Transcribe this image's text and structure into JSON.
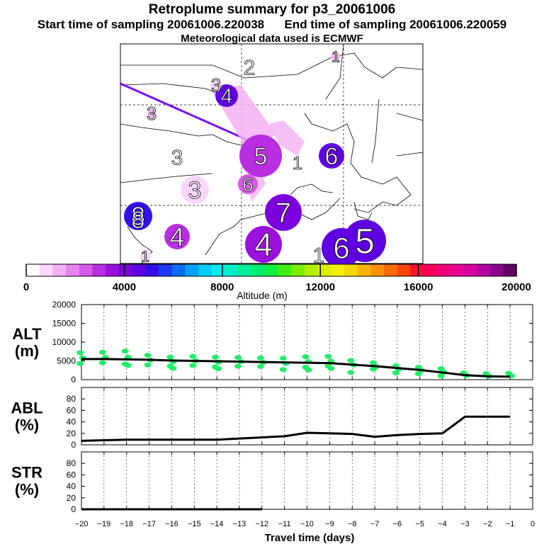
{
  "header": {
    "title": "Retroplume summary for p3_20061006",
    "sampling_line": "Start time of sampling 20061006.220038      End time of sampling 20061006.220059",
    "met_line": "Meteorological data used is ECMWF"
  },
  "colors": {
    "scale": [
      "#ffffff",
      "#fbd6fb",
      "#f3b0f3",
      "#e884ee",
      "#d55ae8",
      "#b92ee0",
      "#9a10dd",
      "#7c00dd",
      "#5e00e0",
      "#3410e8",
      "#1d3cf0",
      "#0c6cf4",
      "#00a0f6",
      "#00cdf6",
      "#00ecec",
      "#00eec6",
      "#00ee9c",
      "#00ee70",
      "#10ee40",
      "#40ee10",
      "#7cee00",
      "#b0ee00",
      "#dcee00",
      "#f4f000",
      "#f4d800",
      "#f8b400",
      "#f89000",
      "#f86c00",
      "#f84400",
      "#f81030",
      "#f8005c",
      "#f0007a",
      "#e80090",
      "#d400a0",
      "#b400a0",
      "#8c0090",
      "#640060"
    ],
    "alt_points": "#22ee66",
    "plume_line": "#7a10ee"
  },
  "map": {
    "cluster_labels": [
      {
        "label": "1",
        "alt_m": 900
      },
      {
        "label": "2",
        "alt_m": 1500
      },
      {
        "label": "3",
        "alt_m": 1200
      },
      {
        "label": "4",
        "alt_m": 4200
      },
      {
        "label": "5",
        "alt_m": 2500
      },
      {
        "label": "6",
        "alt_m": 4500
      },
      {
        "label": "7",
        "alt_m": 3800
      },
      {
        "label": "8",
        "alt_m": 4800
      },
      {
        "label": "1",
        "alt_m": 1800
      },
      {
        "label": "5",
        "alt_m": 4400
      },
      {
        "label": "6",
        "alt_m": 2100
      },
      {
        "label": "3",
        "alt_m": 1000
      },
      {
        "label": "3",
        "alt_m": 800
      },
      {
        "label": "4",
        "alt_m": 3000
      },
      {
        "label": "3",
        "alt_m": 700
      },
      {
        "label": "1",
        "alt_m": 1200
      },
      {
        "label": "8",
        "alt_m": 500
      },
      {
        "label": "4",
        "alt_m": 3200
      },
      {
        "label": "6",
        "alt_m": 4600
      },
      {
        "label": "1",
        "alt_m": 400
      }
    ]
  },
  "colorbar": {
    "ticks": [
      "0",
      "4000",
      "8000",
      "12000",
      "16000",
      "20000"
    ],
    "label": "Altitude (m)"
  },
  "chart_data": [
    {
      "type": "line",
      "panel": "ALT",
      "ylabel": "ALT\n(m)",
      "ylabel_top": "ALT",
      "ylabel_bottom": "(m)",
      "ylim": [
        0,
        20000
      ],
      "yticks": [
        "20000",
        "15000",
        "10000",
        "5000",
        "0"
      ],
      "x": [
        -20,
        -19,
        -18,
        -17,
        -16,
        -15,
        -14,
        -13,
        -12,
        -11,
        -10,
        -9,
        -8,
        -7,
        -6,
        -5,
        -4,
        -3,
        -2,
        -1
      ],
      "series": [
        {
          "name": "median altitude",
          "values": [
            5500,
            5500,
            5400,
            5300,
            5100,
            5000,
            4900,
            4800,
            4700,
            4600,
            4500,
            4400,
            4000,
            3600,
            3100,
            2600,
            1900,
            1200,
            900,
            800
          ]
        }
      ],
      "scatter": [
        {
          "x": -20,
          "y": [
            7200,
            5800,
            4300
          ]
        },
        {
          "x": -19,
          "y": [
            7300,
            5900,
            4500
          ]
        },
        {
          "x": -18,
          "y": [
            7600,
            6000,
            4200,
            3800
          ]
        },
        {
          "x": -17,
          "y": [
            6500,
            5200,
            3900
          ]
        },
        {
          "x": -16,
          "y": [
            6000,
            4800,
            3600,
            3000
          ]
        },
        {
          "x": -15,
          "y": [
            6200,
            5000,
            3800
          ]
        },
        {
          "x": -14,
          "y": [
            6000,
            4700,
            3400,
            2900
          ]
        },
        {
          "x": -13,
          "y": [
            5900,
            4800,
            3600
          ]
        },
        {
          "x": -12,
          "y": [
            5800,
            4600,
            3500
          ]
        },
        {
          "x": -11,
          "y": [
            5700,
            4300,
            2700
          ]
        },
        {
          "x": -10,
          "y": [
            6100,
            4800,
            3300,
            2600
          ]
        },
        {
          "x": -9,
          "y": [
            6200,
            4900,
            3700,
            3000
          ]
        },
        {
          "x": -8,
          "y": [
            5100,
            3900,
            1900
          ]
        },
        {
          "x": -7,
          "y": [
            4500,
            3500,
            2800
          ]
        },
        {
          "x": -6,
          "y": [
            3700,
            2800,
            1800
          ]
        },
        {
          "x": -5,
          "y": [
            3300,
            2500,
            1600
          ]
        },
        {
          "x": -4,
          "y": [
            2900,
            2000,
            1000
          ]
        },
        {
          "x": -3,
          "y": [
            1800,
            1100
          ]
        },
        {
          "x": -2,
          "y": [
            1600,
            900
          ]
        },
        {
          "x": -1,
          "y": [
            1700,
            1000
          ]
        }
      ]
    },
    {
      "type": "line",
      "panel": "ABL",
      "ylabel_top": "ABL",
      "ylabel_bottom": "(%)",
      "ylim": [
        0,
        100
      ],
      "yticks": [
        "80",
        "60",
        "40",
        "20",
        "0"
      ],
      "x": [
        -20,
        -19,
        -18,
        -17,
        -16,
        -15,
        -14,
        -13,
        -12,
        -11,
        -10,
        -9,
        -8,
        -7,
        -6,
        -5,
        -4,
        -3,
        -2,
        -1
      ],
      "series": [
        {
          "name": "ABL fraction",
          "values": [
            7,
            8,
            9,
            9,
            9,
            9,
            9,
            11,
            13,
            15,
            21,
            20,
            19,
            14,
            17,
            19,
            20,
            49,
            49,
            49
          ]
        }
      ]
    },
    {
      "type": "line",
      "panel": "STR",
      "ylabel_top": "STR",
      "ylabel_bottom": "(%)",
      "ylim": [
        0,
        100
      ],
      "yticks": [
        "80",
        "60",
        "40",
        "20",
        "0"
      ],
      "x": [
        -20,
        -19,
        -18,
        -17,
        -16,
        -15,
        -14,
        -13,
        -12
      ],
      "series": [
        {
          "name": "stratospheric fraction",
          "values": [
            0,
            0,
            0,
            0,
            0,
            0,
            0,
            0,
            0
          ]
        }
      ]
    }
  ],
  "xaxis": {
    "ticks": [
      "−20",
      "−19",
      "−18",
      "−17",
      "−16",
      "−15",
      "−14",
      "−13",
      "−12",
      "−11",
      "−10",
      "−9",
      "−8",
      "−7",
      "−6",
      "−5",
      "−4",
      "−3",
      "−2",
      "−1",
      "0"
    ],
    "label": "Travel time (days)"
  }
}
